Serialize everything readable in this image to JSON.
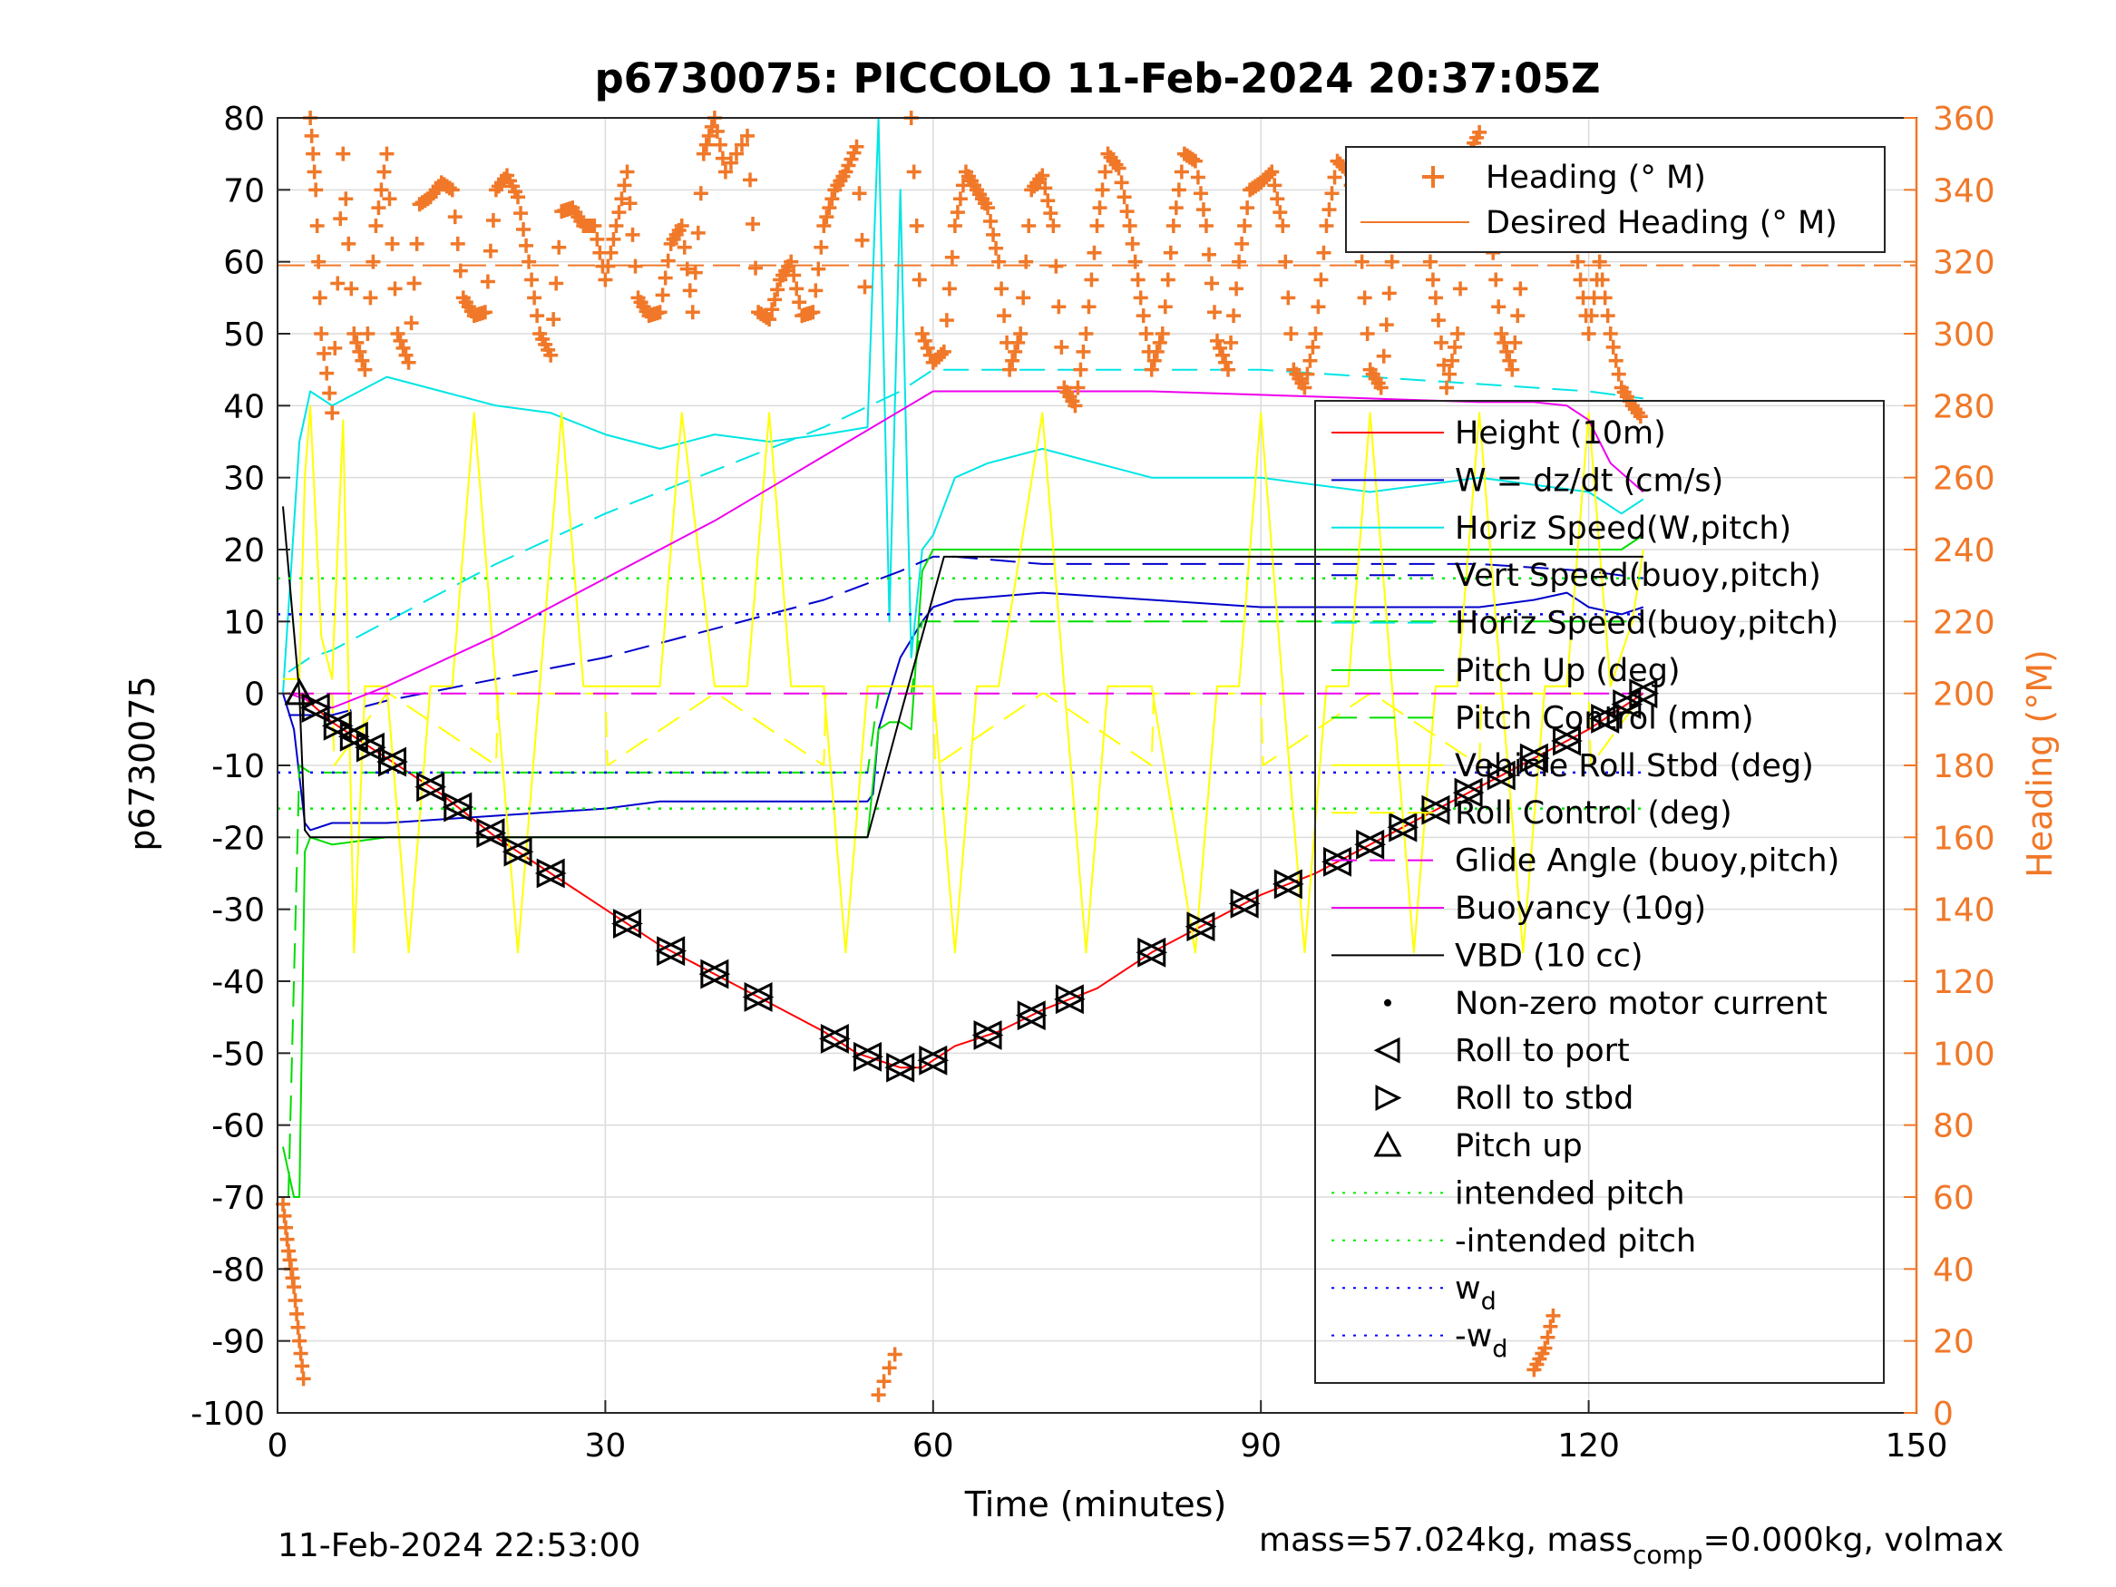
{
  "chart_data": {
    "type": "line",
    "title": "p6730075: PICCOLO 11-Feb-2024 20:37:05Z",
    "xlabel": "Time (minutes)",
    "ylabel": "p6730075",
    "y2label": "Heading (°M)",
    "xlim": [
      0,
      150
    ],
    "ylim": [
      -100,
      80
    ],
    "y2lim": [
      0,
      360
    ],
    "x_ticks": [
      "0",
      "30",
      "60",
      "90",
      "120",
      "150"
    ],
    "y_ticks": [
      "80",
      "70",
      "60",
      "50",
      "40",
      "30",
      "20",
      "10",
      "0",
      "-10",
      "-20",
      "-30",
      "-40",
      "-50",
      "-60",
      "-70",
      "-80",
      "-90",
      "-100"
    ],
    "y2_ticks": [
      "360",
      "340",
      "320",
      "300",
      "280",
      "260",
      "240",
      "220",
      "200",
      "180",
      "160",
      "140",
      "120",
      "100",
      "80",
      "60",
      "40",
      "20",
      "0"
    ],
    "grid": true,
    "footer_left": "11-Feb-2024 22:53:00",
    "footer_right": "mass=57.024kg, mass",
    "footer_right_sub": "comp",
    "footer_right_tail": "=0.000kg, volmax",
    "colors": {
      "height": "#ff0000",
      "w": "#0000cc",
      "hspeed": "#00e5e5",
      "pitch": "#00dd00",
      "roll": "#ffff00",
      "buoy": "#ee00ee",
      "vbd": "#000000",
      "heading": "#f07828",
      "wd": "#0000ff",
      "intended": "#00ee00"
    },
    "legend_heading": [
      {
        "label": "Heading (° M)",
        "style": "plus"
      },
      {
        "label": "Desired Heading (° M)",
        "style": "line-orange"
      }
    ],
    "legend_main": [
      {
        "label": "Height (10m)",
        "style": "solid-red"
      },
      {
        "label": "W = dz/dt (cm/s)",
        "style": "solid-blue"
      },
      {
        "label": "Horiz Speed(W,pitch)",
        "style": "solid-cyan"
      },
      {
        "label": "Vert Speed(buoy,pitch)",
        "style": "dash-blue"
      },
      {
        "label": "Horiz Speed(buoy,pitch)",
        "style": "dash-cyan"
      },
      {
        "label": "Pitch Up (deg)",
        "style": "solid-green"
      },
      {
        "label": "Pitch Control (mm)",
        "style": "dash-green"
      },
      {
        "label": "Vehicle Roll Stbd (deg)",
        "style": "solid-yellow"
      },
      {
        "label": "Roll Control (deg)",
        "style": "dash-yellow"
      },
      {
        "label": "Glide Angle (buoy,pitch)",
        "style": "dash-magenta"
      },
      {
        "label": "Buoyancy (10g)",
        "style": "solid-magenta"
      },
      {
        "label": "VBD (10 cc)",
        "style": "solid-black"
      },
      {
        "label": "Non-zero motor current",
        "style": "dot"
      },
      {
        "label": "Roll to port",
        "style": "tri-left"
      },
      {
        "label": "Roll to stbd",
        "style": "tri-right"
      },
      {
        "label": "Pitch up",
        "style": "tri-up"
      },
      {
        "label": "intended pitch",
        "style": "dot-green"
      },
      {
        "label": "-intended pitch",
        "style": "dot-green"
      },
      {
        "label": "w",
        "sub": "d",
        "style": "dot-blue"
      },
      {
        "label": "-w",
        "sub": "d",
        "style": "dot-blue"
      }
    ],
    "series": [
      {
        "name": "Height (10m)",
        "x": [
          0.5,
          2,
          5,
          10,
          15,
          20,
          25,
          30,
          35,
          40,
          45,
          50,
          53,
          55,
          57,
          59,
          62,
          66,
          70,
          75,
          80,
          85,
          90,
          95,
          100,
          105,
          110,
          115,
          120,
          123,
          125
        ],
        "y": [
          0,
          0,
          -4,
          -9,
          -14,
          -20,
          -25,
          -30,
          -35,
          -39,
          -43,
          -47,
          -50,
          -51,
          -52,
          -52,
          -49,
          -47,
          -44,
          -41,
          -36,
          -32,
          -28,
          -25,
          -21,
          -17,
          -13,
          -9,
          -5,
          -2,
          0
        ]
      },
      {
        "name": "W = dz/dt (cm/s)",
        "x": [
          0.5,
          1.5,
          2.5,
          3,
          5,
          10,
          20,
          30,
          35,
          40,
          45,
          50,
          54,
          54.5,
          55,
          57,
          59,
          60,
          62,
          70,
          80,
          90,
          100,
          110,
          115,
          118,
          120,
          123,
          125
        ],
        "y": [
          0,
          -5,
          -18,
          -19,
          -18,
          -18,
          -17,
          -16,
          -15,
          -15,
          -15,
          -15,
          -15,
          -14,
          -5,
          5,
          10,
          12,
          13,
          14,
          13,
          12,
          12,
          12,
          13,
          14,
          12,
          11,
          12
        ]
      },
      {
        "name": "Horiz Speed(W,pitch)",
        "x": [
          0.5,
          2,
          3,
          5,
          10,
          15,
          20,
          25,
          30,
          35,
          40,
          45,
          50,
          54,
          55,
          56,
          57,
          58,
          59,
          60,
          62,
          65,
          70,
          80,
          90,
          100,
          110,
          115,
          120,
          123,
          125
        ],
        "y": [
          0,
          35,
          42,
          40,
          44,
          42,
          40,
          39,
          36,
          34,
          36,
          35,
          36,
          37,
          80,
          10,
          70,
          5,
          20,
          22,
          30,
          32,
          34,
          30,
          30,
          28,
          30,
          29,
          28,
          25,
          27
        ]
      },
      {
        "name": "Vert Speed(buoy,pitch)",
        "x": [
          1,
          3,
          5,
          10,
          20,
          30,
          40,
          50,
          57,
          60,
          62,
          70,
          80,
          90,
          100,
          110,
          120,
          125
        ],
        "y": [
          -3,
          -3,
          -3,
          -1,
          2,
          5,
          9,
          13,
          17,
          19,
          19,
          18,
          18,
          18,
          18,
          18,
          17,
          16
        ]
      },
      {
        "name": "Horiz Speed(buoy,pitch)",
        "x": [
          1,
          3,
          5,
          10,
          20,
          30,
          40,
          50,
          57,
          60,
          62,
          70,
          80,
          90,
          100,
          110,
          120,
          125
        ],
        "y": [
          3,
          5,
          6,
          10,
          18,
          25,
          31,
          37,
          42,
          45,
          45,
          45,
          45,
          45,
          44,
          43,
          42,
          41
        ]
      },
      {
        "name": "Pitch Up (deg)",
        "x": [
          0.5,
          1.5,
          2,
          2.5,
          3,
          5,
          10,
          20,
          30,
          40,
          50,
          54,
          55,
          56,
          57,
          58,
          59,
          60,
          61,
          70,
          80,
          90,
          100,
          110,
          120,
          123,
          125
        ],
        "y": [
          -63,
          -70,
          -70,
          -22,
          -20,
          -21,
          -20,
          -20,
          -20,
          -20,
          -20,
          -20,
          -5,
          -4,
          -4,
          -5,
          17,
          20,
          20,
          20,
          20,
          20,
          20,
          20,
          20,
          20,
          22
        ]
      },
      {
        "name": "Pitch Control (mm)",
        "x": [
          1,
          2,
          3,
          10,
          20,
          30,
          40,
          50,
          54,
          55,
          58,
          59,
          60,
          62,
          70,
          80,
          90,
          100,
          110,
          120,
          125
        ],
        "y": [
          -70,
          -10,
          -11,
          -11,
          -11,
          -11,
          -11,
          -11,
          -11,
          0,
          0,
          10,
          10,
          10,
          10,
          10,
          10,
          10,
          10,
          10,
          10
        ]
      },
      {
        "name": "Vehicle Roll Stbd (deg)",
        "x": [
          0.5,
          2,
          2.5,
          3,
          4,
          5,
          6,
          6.5,
          7,
          8,
          10,
          12,
          14,
          16,
          18,
          20,
          22,
          24,
          26,
          28,
          30,
          33,
          35,
          37,
          40,
          43,
          45,
          47,
          50,
          52,
          54,
          57,
          60,
          62,
          64,
          66,
          70,
          72,
          74,
          76,
          78,
          80,
          84,
          86,
          88,
          90,
          92,
          94,
          96,
          98,
          100,
          102,
          104,
          106,
          108,
          110,
          112,
          114,
          116,
          118,
          120,
          122,
          124,
          125
        ],
        "y": [
          2,
          2,
          30,
          40,
          8,
          2,
          38,
          1,
          -36,
          1,
          1,
          -36,
          1,
          1,
          39,
          1,
          -36,
          1,
          39,
          1,
          1,
          1,
          1,
          39,
          1,
          1,
          39,
          1,
          1,
          -36,
          1,
          1,
          1,
          -36,
          1,
          1,
          39,
          1,
          -36,
          1,
          1,
          1,
          -36,
          1,
          1,
          39,
          1,
          -36,
          1,
          1,
          39,
          1,
          -36,
          1,
          1,
          39,
          1,
          -36,
          1,
          1,
          39,
          1,
          10,
          20
        ]
      },
      {
        "name": "Roll Control (deg)",
        "x": [
          1,
          5,
          5.2,
          10,
          10.2,
          20,
          20.2,
          30,
          30.2,
          40,
          40.2,
          50,
          50.2,
          60,
          60.2,
          70,
          70.2,
          80,
          80.2,
          90,
          90.2,
          100,
          100.2,
          110,
          110.2,
          120,
          120.2,
          125
        ],
        "y": [
          0,
          0,
          -10,
          0,
          0,
          -10,
          0,
          0,
          -10,
          0,
          0,
          -10,
          0,
          0,
          -10,
          0,
          0,
          -10,
          0,
          0,
          -10,
          0,
          0,
          -10,
          0,
          0,
          -10,
          0
        ]
      },
      {
        "name": "Glide Angle (buoy,pitch)",
        "x": [
          1,
          125
        ],
        "y": [
          0,
          0
        ]
      },
      {
        "name": "Buoyancy (10g)",
        "x": [
          1,
          5,
          10,
          20,
          30,
          40,
          50,
          60,
          61,
          80,
          90,
          100,
          110,
          115,
          118,
          120,
          122,
          125
        ],
        "y": [
          0,
          -2,
          1,
          8,
          16,
          24,
          33,
          42,
          42,
          42,
          41.5,
          41,
          40.5,
          40.5,
          40,
          38,
          32,
          28
        ]
      },
      {
        "name": "VBD (10 cc)",
        "x": [
          0.5,
          2,
          2.5,
          3,
          10,
          20,
          30,
          40,
          50,
          54,
          57,
          61,
          62,
          70,
          80,
          90,
          100,
          110,
          120,
          125
        ],
        "y": [
          26,
          0,
          -19,
          -20,
          -20,
          -20,
          -20,
          -20,
          -20,
          -20,
          -3,
          19,
          19,
          19,
          19,
          19,
          19,
          19,
          19,
          19
        ]
      },
      {
        "name": "intended pitch",
        "x": [
          0,
          125
        ],
        "y": [
          16,
          16
        ]
      },
      {
        "name": "-intended pitch",
        "x": [
          0,
          125
        ],
        "y": [
          -16,
          -16
        ]
      },
      {
        "name": "w_d",
        "x": [
          0,
          125
        ],
        "y": [
          11,
          11
        ]
      },
      {
        "name": "-w_d",
        "x": [
          0,
          125
        ],
        "y": [
          -11,
          -11
        ]
      }
    ],
    "heading": {
      "axis": "right",
      "x": [
        0.5,
        1,
        1.5,
        2,
        2.5,
        3,
        3.5,
        4,
        5,
        6,
        7,
        8,
        9,
        10,
        11,
        12,
        13,
        14,
        15,
        16,
        17,
        18,
        19,
        20,
        21,
        22,
        23,
        24,
        25,
        26,
        27,
        28,
        29,
        30,
        31,
        32,
        33,
        34,
        35,
        36,
        37,
        38,
        39,
        40,
        41,
        43,
        44,
        45,
        46,
        47,
        48,
        49,
        50,
        51,
        52,
        53,
        54,
        55,
        57,
        58,
        59,
        60,
        61,
        62,
        63,
        64,
        65,
        66,
        67,
        68,
        69,
        70,
        71,
        72,
        73,
        74,
        75,
        76,
        77,
        78,
        79,
        80,
        81,
        82,
        83,
        84,
        85,
        86,
        87,
        88,
        89,
        90,
        91,
        92,
        93,
        94,
        95,
        96,
        97,
        98,
        99,
        100,
        101,
        102,
        103,
        104,
        105,
        106,
        107,
        108,
        109,
        110,
        111,
        112,
        113,
        114,
        115,
        116,
        117,
        118,
        119,
        120,
        121,
        122,
        123,
        124,
        125
      ],
      "y": [
        58,
        45,
        35,
        20,
        6,
        360,
        340,
        300,
        278,
        350,
        300,
        290,
        330,
        350,
        300,
        292,
        336,
        338,
        342,
        340,
        310,
        305,
        306,
        340,
        344,
        338,
        320,
        300,
        294,
        334,
        335,
        330,
        330,
        315,
        330,
        345,
        310,
        305,
        306,
        325,
        330,
        306,
        350,
        360,
        345,
        355,
        306,
        304,
        315,
        320,
        305,
        306,
        330,
        340,
        345,
        352,
        300,
        5,
        20,
        360,
        300,
        292,
        295,
        330,
        345,
        340,
        335,
        320,
        290,
        300,
        340,
        344,
        330,
        285,
        280,
        300,
        330,
        350,
        346,
        330,
        310,
        290,
        300,
        330,
        350,
        348,
        330,
        298,
        290,
        320,
        340,
        342,
        345,
        330,
        290,
        285,
        300,
        330,
        348,
        345,
        330,
        290,
        285,
        320,
        350,
        340,
        330,
        310,
        285,
        300,
        350,
        356,
        330,
        300,
        290,
        320,
        12,
        18,
        30,
        340,
        320,
        300,
        320,
        300,
        285,
        280,
        276
      ]
    },
    "desired_heading": {
      "axis": "right",
      "value": 319
    }
  }
}
